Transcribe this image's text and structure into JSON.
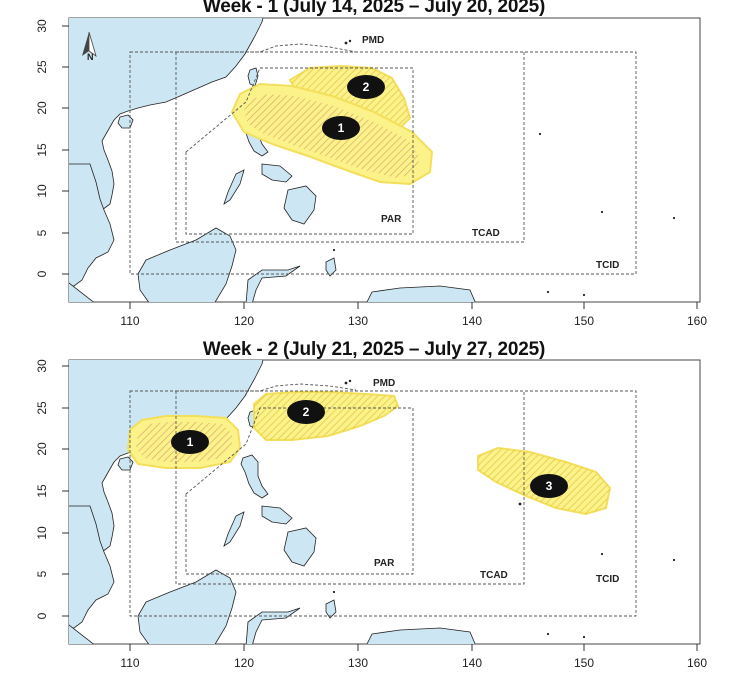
{
  "maps": [
    {
      "title": "Week - 1 (July 14, 2025 – July 20, 2025)",
      "x_ticks": [
        "110",
        "120",
        "130",
        "140",
        "150",
        "160"
      ],
      "y_ticks": [
        "0",
        "5",
        "10",
        "15",
        "20",
        "25",
        "30"
      ],
      "regions": {
        "pmd": "PMD",
        "par": "PAR",
        "tcad": "TCAD",
        "tcid": "TCID"
      },
      "areas": [
        {
          "label": "2",
          "marker_lon": 130.6,
          "marker_lat": 22.7
        },
        {
          "label": "1",
          "marker_lon": 128.9,
          "marker_lat": 17.9
        }
      ],
      "north_arrow": "N"
    },
    {
      "title": "Week - 2 (July 21, 2025 – July 27, 2025)",
      "x_ticks": [
        "110",
        "120",
        "130",
        "140",
        "150",
        "160"
      ],
      "y_ticks": [
        "0",
        "5",
        "10",
        "15",
        "20",
        "25",
        "30"
      ],
      "regions": {
        "pmd": "PMD",
        "par": "PAR",
        "tcad": "TCAD",
        "tcid": "TCID"
      },
      "areas": [
        {
          "label": "1",
          "marker_lon": 115.8,
          "marker_lat": 20.7
        },
        {
          "label": "2",
          "marker_lon": 126.8,
          "marker_lat": 24.5
        },
        {
          "label": "3",
          "marker_lon": 147.6,
          "marker_lat": 15.7
        }
      ]
    }
  ],
  "colors": {
    "land": "#cde6f3",
    "outlook_fill": "#fbf28a",
    "outlook_hatch": "#e6c84a",
    "marker": "#111111"
  }
}
